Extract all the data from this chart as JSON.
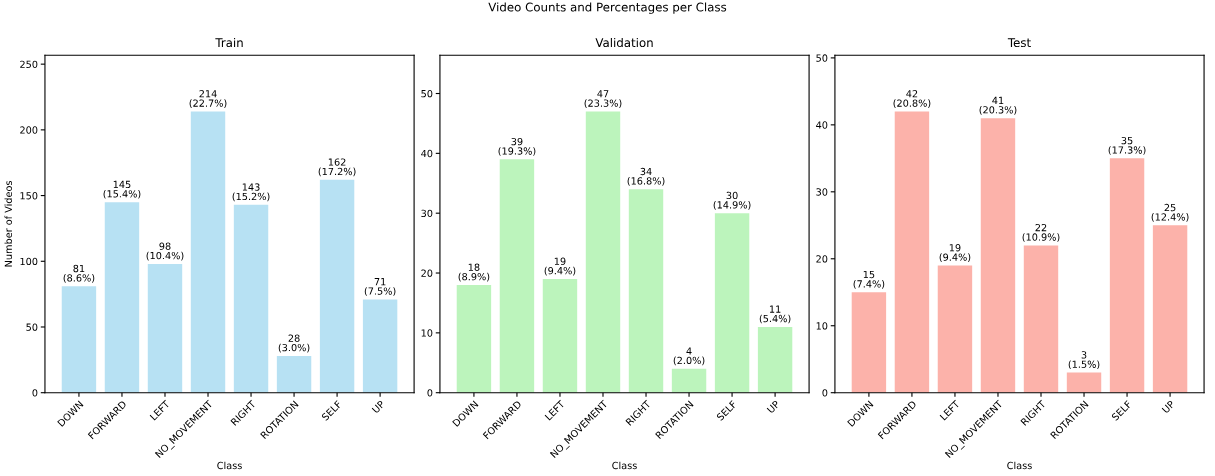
{
  "chart_data": [
    {
      "type": "bar",
      "title": "Train",
      "xlabel": "Class",
      "ylabel": "Number of Videos",
      "annotations": [
        "Video Counts and Percentages per Class"
      ],
      "categories": [
        "DOWN",
        "FORWARD",
        "LEFT",
        "NO_MOVEMENT",
        "RIGHT",
        "ROTATION",
        "SELF",
        "UP"
      ],
      "values": [
        81,
        145,
        98,
        214,
        143,
        28,
        162,
        71
      ],
      "color": "#b7e1f3",
      "value_labels": [
        "81\n(8.6%)",
        "145\n(15.4%)",
        "98\n(10.4%)",
        "214\n(22.7%)",
        "143\n(15.2%)",
        "28\n(3.0%)",
        "162\n(17.2%)",
        "71\n(7.5%)"
      ],
      "ylim": [
        0,
        256.8
      ],
      "yticks": [
        0,
        50,
        100,
        150,
        200,
        250
      ],
      "grid": false
    },
    {
      "type": "bar",
      "title": "Validation",
      "xlabel": "Class",
      "categories": [
        "DOWN",
        "FORWARD",
        "LEFT",
        "NO_MOVEMENT",
        "RIGHT",
        "ROTATION",
        "SELF",
        "UP"
      ],
      "values": [
        18,
        39,
        19,
        47,
        34,
        4,
        30,
        11
      ],
      "color": "#bcf4bc",
      "value_labels": [
        "18\n(8.9%)",
        "39\n(19.3%)",
        "19\n(9.4%)",
        "47\n(23.3%)",
        "34\n(16.8%)",
        "4\n(2.0%)",
        "30\n(14.9%)",
        "11\n(5.4%)"
      ],
      "ylim": [
        0,
        56.4
      ],
      "yticks": [
        0,
        10,
        20,
        30,
        40,
        50
      ],
      "grid": false
    },
    {
      "type": "bar",
      "title": "Test",
      "xlabel": "Class",
      "categories": [
        "DOWN",
        "FORWARD",
        "LEFT",
        "NO_MOVEMENT",
        "RIGHT",
        "ROTATION",
        "SELF",
        "UP"
      ],
      "values": [
        15,
        42,
        19,
        41,
        22,
        3,
        35,
        25
      ],
      "color": "#fcb2aa",
      "value_labels": [
        "15\n(7.4%)",
        "42\n(20.8%)",
        "19\n(9.4%)",
        "41\n(20.3%)",
        "22\n(10.9%)",
        "3\n(1.5%)",
        "35\n(17.3%)",
        "25\n(12.4%)"
      ],
      "ylim": [
        0,
        50.4
      ],
      "yticks": [
        0,
        10,
        20,
        30,
        40,
        50
      ],
      "grid": false
    }
  ]
}
